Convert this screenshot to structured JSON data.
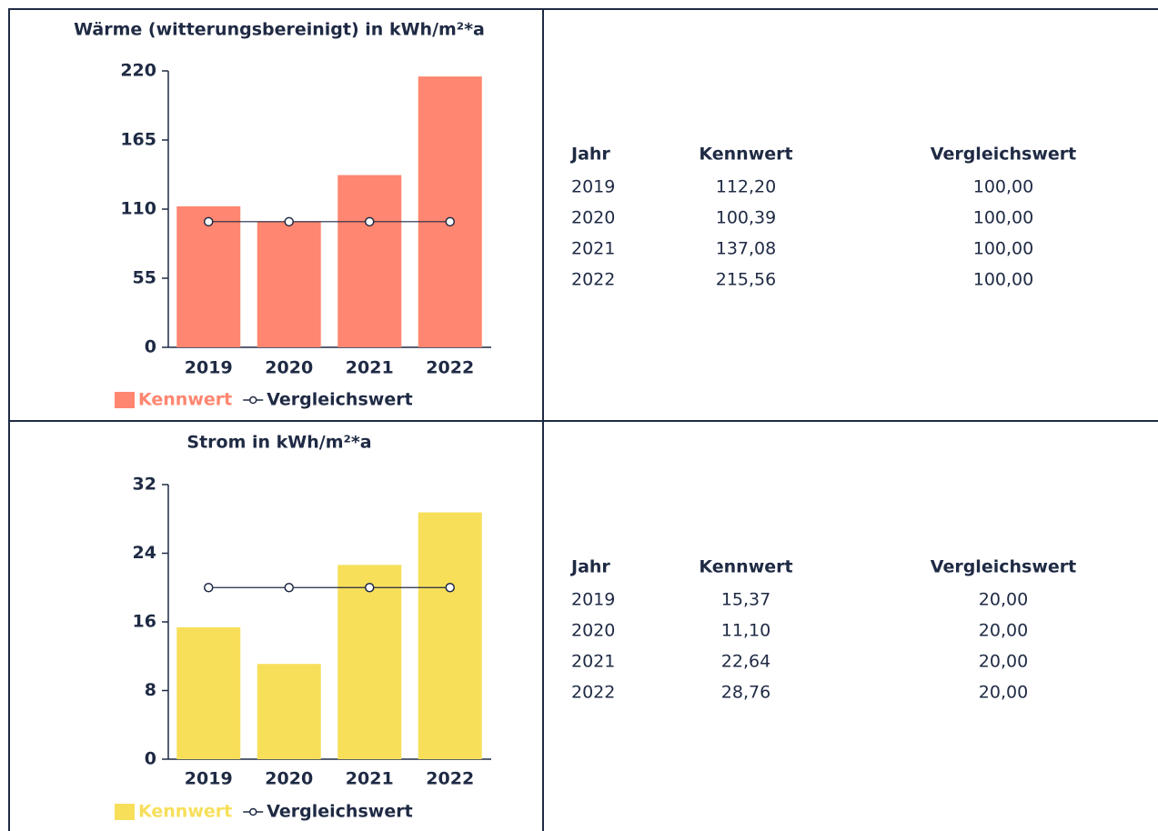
{
  "chart_data": [
    {
      "type": "bar",
      "title": "Wärme (witterungsbereinigt) in kWh/m²*a",
      "categories": [
        "2019",
        "2020",
        "2021",
        "2022"
      ],
      "series": [
        {
          "name": "Kennwert",
          "type": "bar",
          "color": "#ff8670",
          "values": [
            112.2,
            100.39,
            137.08,
            215.56
          ]
        },
        {
          "name": "Vergleichswert",
          "type": "line",
          "color": "#1f2a44",
          "values": [
            100,
            100,
            100,
            100
          ]
        }
      ],
      "ylim": [
        0,
        220
      ],
      "yticks": [
        0,
        55,
        110,
        165,
        220
      ],
      "grid": false,
      "legend": "bottom"
    },
    {
      "type": "bar",
      "title": "Strom in kWh/m²*a",
      "categories": [
        "2019",
        "2020",
        "2021",
        "2022"
      ],
      "series": [
        {
          "name": "Kennwert",
          "type": "bar",
          "color": "#f7df5a",
          "values": [
            15.37,
            11.1,
            22.64,
            28.76
          ]
        },
        {
          "name": "Vergleichswert",
          "type": "line",
          "color": "#1f2a44",
          "values": [
            20,
            20,
            20,
            20
          ]
        }
      ],
      "ylim": [
        0,
        32
      ],
      "yticks": [
        0,
        8,
        16,
        24,
        32
      ],
      "grid": false,
      "legend": "bottom"
    }
  ],
  "tables": [
    {
      "columns": [
        "Jahr",
        "Kennwert",
        "Vergleichswert"
      ],
      "rows": [
        [
          "2019",
          "112,20",
          "100,00"
        ],
        [
          "2020",
          "100,39",
          "100,00"
        ],
        [
          "2021",
          "137,08",
          "100,00"
        ],
        [
          "2022",
          "215,56",
          "100,00"
        ]
      ]
    },
    {
      "columns": [
        "Jahr",
        "Kennwert",
        "Vergleichswert"
      ],
      "rows": [
        [
          "2019",
          "15,37",
          "20,00"
        ],
        [
          "2020",
          "11,10",
          "20,00"
        ],
        [
          "2021",
          "22,64",
          "20,00"
        ],
        [
          "2022",
          "28,76",
          "20,00"
        ]
      ]
    }
  ]
}
